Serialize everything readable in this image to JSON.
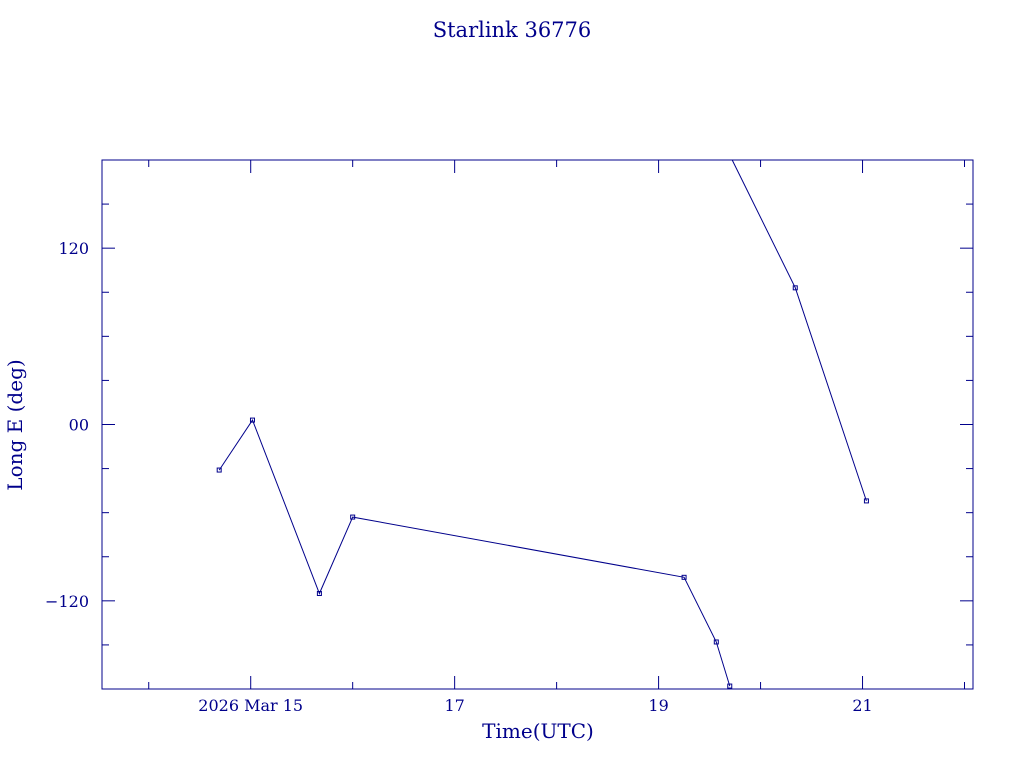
{
  "chart_data": {
    "type": "line",
    "title": "Starlink 36776",
    "xlabel": "Time(UTC)",
    "ylabel": "Long E (deg)",
    "color": "#00008b",
    "marker": "square",
    "grid": false,
    "x_axis": {
      "kind": "date",
      "range": [
        "2026-03-13T13:00",
        "2026-03-22T02:00"
      ],
      "major_ticks": [
        {
          "value": "2026-03-15T00:00",
          "label": "2026 Mar 15"
        },
        {
          "value": "2026-03-17T00:00",
          "label": "17"
        },
        {
          "value": "2026-03-19T00:00",
          "label": "19"
        },
        {
          "value": "2026-03-21T00:00",
          "label": "21"
        }
      ],
      "minor_ticks": [
        "2026-03-14T00:00",
        "2026-03-16T00:00",
        "2026-03-18T00:00",
        "2026-03-20T00:00",
        "2026-03-22T00:00"
      ]
    },
    "y_axis": {
      "range": [
        -180,
        180
      ],
      "major_ticks": [
        {
          "value": 120,
          "label": "120"
        },
        {
          "value": 0,
          "label": "00"
        },
        {
          "value": -120,
          "label": "−120"
        }
      ],
      "minor_ticks": [
        150,
        90,
        60,
        30,
        -30,
        -60,
        -90,
        -150
      ]
    },
    "series": [
      {
        "points": [
          {
            "x": "2026-03-14T16:35",
            "y": -31
          },
          {
            "x": "2026-03-15T00:25",
            "y": 3
          },
          {
            "x": "2026-03-15T16:10",
            "y": -115
          },
          {
            "x": "2026-03-16T00:00",
            "y": -63
          },
          {
            "x": "2026-03-19T06:00",
            "y": -104
          },
          {
            "x": "2026-03-19T13:35",
            "y": -148
          },
          {
            "x": "2026-03-19T16:45",
            "y": -178
          }
        ]
      },
      {
        "points": [
          {
            "x": "2026-03-19T17:20",
            "y": 180
          },
          {
            "x": "2026-03-20T08:10",
            "y": 93
          },
          {
            "x": "2026-03-21T00:55",
            "y": -52
          }
        ]
      }
    ]
  }
}
